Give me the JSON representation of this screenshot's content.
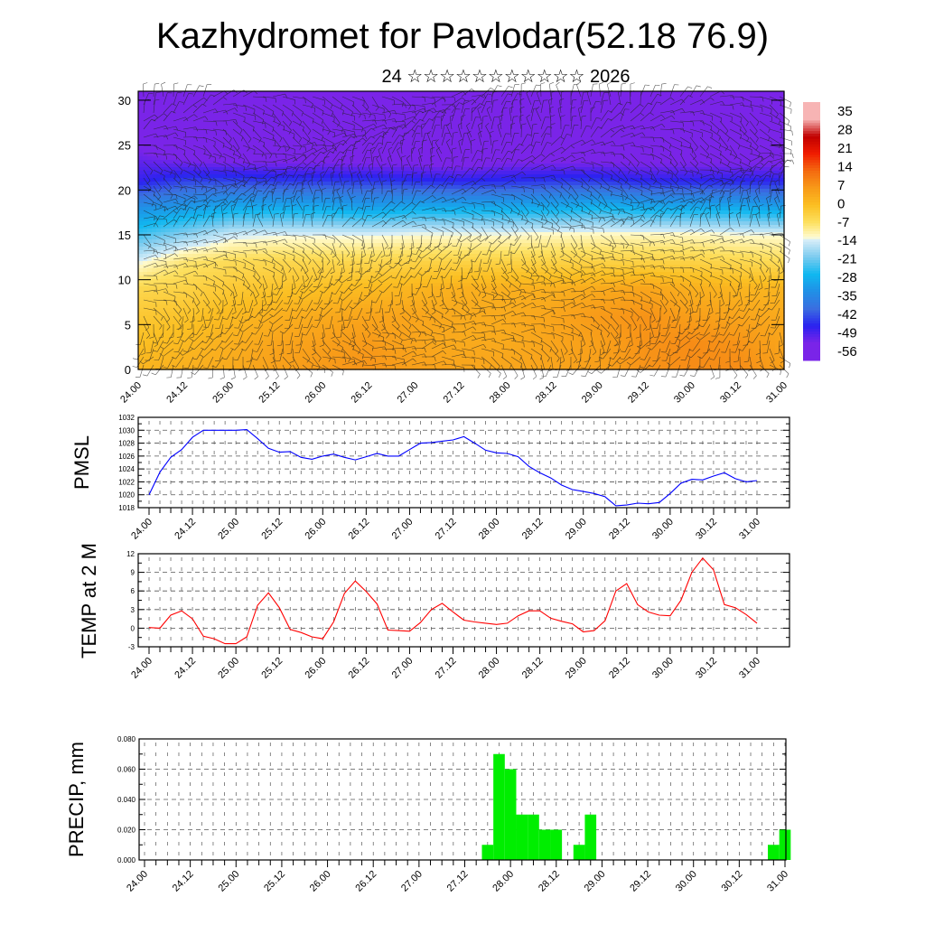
{
  "title": "Kazhydromet for Pavlodar(52.18 76.9)",
  "subtitle": "24 ☆☆☆☆☆☆☆☆☆☆☆ 2026",
  "chart_data": [
    {
      "type": "heatmap",
      "name": "vertical temperature cross-section with wind barbs",
      "x_tick_labels": [
        "24.00",
        "24.12",
        "25.00",
        "25.12",
        "26.00",
        "26.12",
        "27.00",
        "27.12",
        "28.00",
        "28.12",
        "29.00",
        "29.12",
        "30.00",
        "30.12",
        "31.00"
      ],
      "y_ticks": [
        0,
        5,
        10,
        15,
        20,
        25,
        30
      ],
      "ylim": [
        0,
        31
      ],
      "grid_heights": [
        0,
        3,
        6,
        9,
        12,
        15,
        18,
        21,
        24,
        27,
        31
      ],
      "grid_values": [
        [
          2,
          3,
          4,
          6,
          7,
          8,
          6,
          5,
          5,
          5,
          6,
          8,
          9,
          9,
          6
        ],
        [
          0,
          1,
          3,
          5,
          6,
          7,
          5,
          4,
          4,
          5,
          6,
          8,
          9,
          8,
          5
        ],
        [
          -2,
          -1,
          1,
          3,
          4,
          5,
          5,
          4,
          4,
          5,
          7,
          8,
          6,
          5,
          4
        ],
        [
          -5,
          -4,
          -2,
          -1,
          0,
          1,
          2,
          3,
          3,
          3,
          4,
          5,
          3,
          2,
          2
        ],
        [
          -14,
          -8,
          -6,
          -5,
          -5,
          -5,
          -4,
          -4,
          -4,
          -4,
          -4,
          -4,
          -4,
          -5,
          -6
        ],
        [
          -25,
          -20,
          -15,
          -14,
          -14,
          -14,
          -13,
          -13,
          -13,
          -12,
          -12,
          -12,
          -12,
          -13,
          -13
        ],
        [
          -35,
          -33,
          -30,
          -30,
          -30,
          -32,
          -30,
          -30,
          -30,
          -30,
          -28,
          -30,
          -30,
          -30,
          -32
        ],
        [
          -50,
          -46,
          -46,
          -47,
          -47,
          -47,
          -48,
          -49,
          -48,
          -47,
          -47,
          -49,
          -49,
          -49,
          -49
        ],
        [
          -55,
          -59,
          -60,
          -60,
          -60,
          -61,
          -61,
          -62,
          -60,
          -60,
          -60,
          -60,
          -60,
          -60,
          -60
        ],
        [
          -60,
          -60,
          -61,
          -61,
          -61,
          -61,
          -61,
          -61,
          -61,
          -61,
          -61,
          -61,
          -61,
          -61,
          -61
        ],
        [
          -60,
          -60,
          -60,
          -60,
          -60,
          -60,
          -60,
          -60,
          -60,
          -60,
          -60,
          -60,
          -60,
          -60,
          -60
        ]
      ],
      "colorbar_labels": [
        "35",
        "28",
        "21",
        "14",
        "7",
        "0",
        "-7",
        "-14",
        "-21",
        "-28",
        "-35",
        "-42",
        "-49",
        "-56"
      ],
      "colorbar_levels": [
        35,
        28,
        21,
        14,
        7,
        0,
        -7,
        -14,
        -21,
        -28,
        -35,
        -42,
        -49,
        -56
      ],
      "colors": {
        "35": "#f7b4b4",
        "28": "#c00000",
        "21": "#f01c00",
        "14": "#f46a10",
        "7": "#f89a18",
        "0": "#fbbf22",
        "-7": "#fde060",
        "-13": "#fffbd0",
        "-14": "#d8eef8",
        "-21": "#7ccbef",
        "-28": "#10b8f0",
        "-35": "#2090e6",
        "-42": "#3b6ee0",
        "-49": "#2a22f0",
        "-56": "#7a24e8"
      }
    },
    {
      "type": "line",
      "ylabel": "PMSL",
      "ylim": [
        1018,
        1032
      ],
      "y_ticks": [
        "1018",
        "1020",
        "1022",
        "1024",
        "1026",
        "1028",
        "1030",
        "1032"
      ],
      "x_tick_labels": [
        "24.00",
        "24.12",
        "25.00",
        "25.12",
        "26.00",
        "26.12",
        "27.00",
        "27.12",
        "28.00",
        "28.12",
        "29.00",
        "29.12",
        "30.00",
        "30.12",
        "31.00"
      ],
      "color": "#0000ff",
      "step_hours": 3,
      "values": [
        1020,
        1023.5,
        1025.8,
        1027,
        1028.9,
        1030,
        1030,
        1030,
        1030,
        1030.1,
        1028.7,
        1027.2,
        1026.6,
        1026.7,
        1025.8,
        1025.5,
        1026,
        1026.3,
        1025.8,
        1025.4,
        1025.9,
        1026.4,
        1026,
        1026,
        1027,
        1028,
        1028.1,
        1028.3,
        1028.5,
        1029,
        1028,
        1026.9,
        1026.5,
        1026.4,
        1025.9,
        1024.4,
        1023.4,
        1022.6,
        1021.5,
        1020.8,
        1020.5,
        1020.2,
        1019.7,
        1018.3,
        1018.4,
        1018.7,
        1018.6,
        1018.8,
        1020.2,
        1021.8,
        1022.4,
        1022.3,
        1022.9,
        1023.4,
        1022.5,
        1022,
        1022.2
      ]
    },
    {
      "type": "line",
      "ylabel": "TEMP at 2 M",
      "ylim": [
        -3,
        12
      ],
      "y_ticks": [
        "-3",
        "0",
        "3",
        "6",
        "9",
        "12"
      ],
      "x_tick_labels": [
        "24.00",
        "24.12",
        "25.00",
        "25.12",
        "26.00",
        "26.12",
        "27.00",
        "27.12",
        "28.00",
        "28.12",
        "29.00",
        "29.12",
        "30.00",
        "30.12",
        "31.00"
      ],
      "color": "#ff0000",
      "step_hours": 3,
      "values": [
        0.1,
        0,
        2.1,
        2.8,
        1.5,
        -1.3,
        -1.7,
        -2.5,
        -2.5,
        -1.4,
        3.7,
        5.7,
        3.3,
        -0.2,
        -0.7,
        -1.4,
        -1.7,
        1,
        5.6,
        7.6,
        5.9,
        3.9,
        -0.3,
        -0.4,
        -0.5,
        0.9,
        3,
        4,
        2.6,
        1.3,
        1,
        0.8,
        0.6,
        0.8,
        2,
        2.8,
        2.8,
        1.6,
        1.1,
        0.7,
        -0.6,
        -0.4,
        1.2,
        6,
        7.2,
        3.8,
        2.6,
        2.1,
        2,
        4.5,
        9,
        11.3,
        9.4,
        3.8,
        3.3,
        2.2,
        0.8
      ]
    },
    {
      "type": "bar",
      "ylabel": "PRECIP, mm",
      "ylim": [
        0,
        0.08
      ],
      "y_ticks": [
        "0.000",
        "0.020",
        "0.040",
        "0.060",
        "0.080"
      ],
      "x_tick_labels": [
        "24.00",
        "24.12",
        "25.00",
        "25.12",
        "26.00",
        "26.12",
        "27.00",
        "27.12",
        "28.00",
        "28.12",
        "29.00",
        "29.12",
        "30.00",
        "30.12",
        "31.00"
      ],
      "color": "#00ee00",
      "step_hours": 3,
      "values": [
        0,
        0,
        0,
        0,
        0,
        0,
        0,
        0,
        0,
        0,
        0,
        0,
        0,
        0,
        0,
        0,
        0,
        0,
        0,
        0,
        0,
        0,
        0,
        0,
        0,
        0,
        0,
        0,
        0,
        0,
        0.01,
        0.07,
        0.06,
        0.03,
        0.03,
        0.02,
        0.02,
        0,
        0.01,
        0.03,
        0,
        0,
        0,
        0,
        0,
        0,
        0,
        0,
        0,
        0,
        0,
        0,
        0,
        0,
        0,
        0.01,
        0.02
      ]
    }
  ]
}
